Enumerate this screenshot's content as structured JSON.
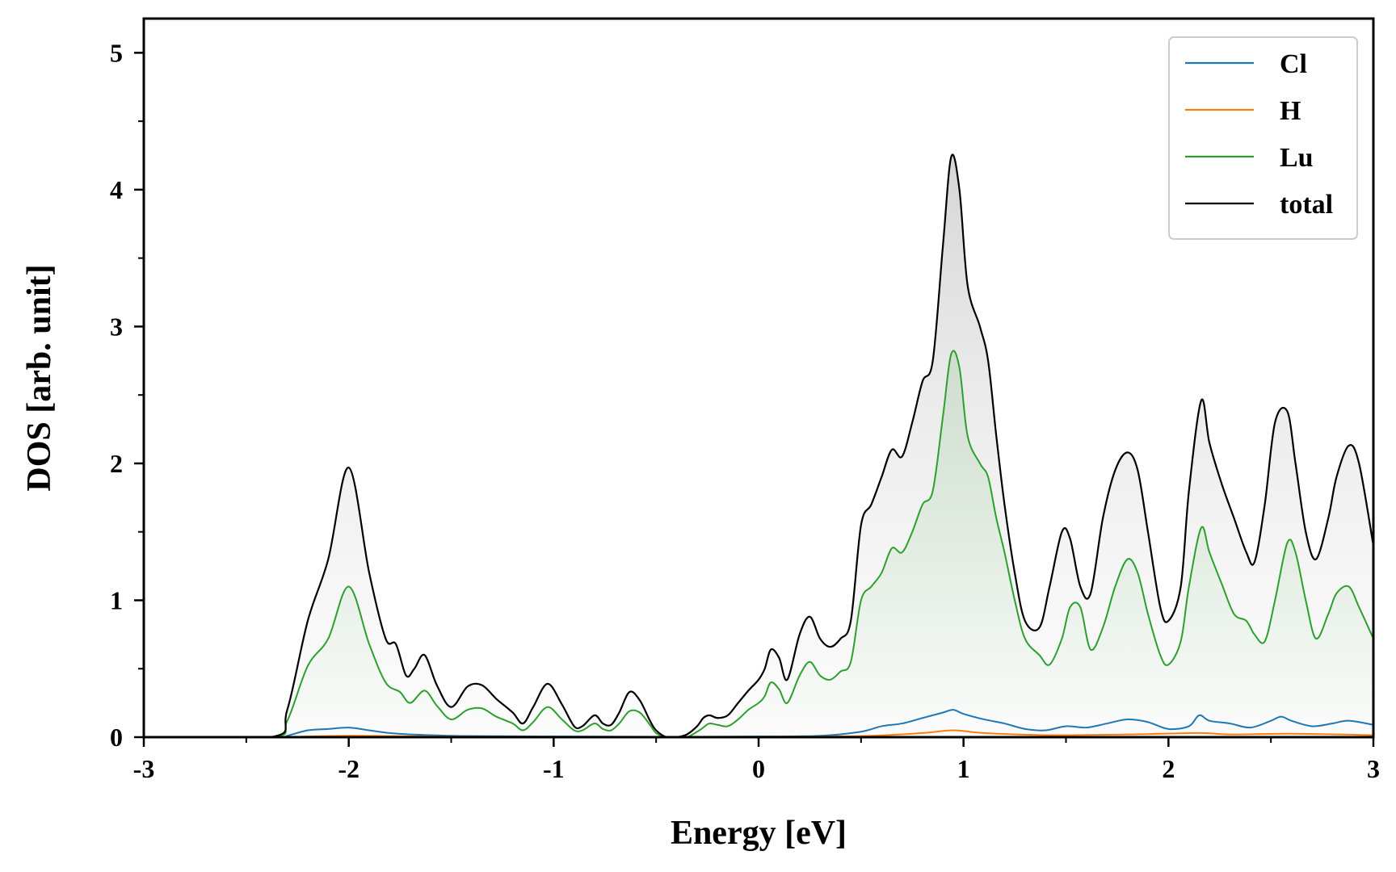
{
  "chart_data": {
    "type": "line",
    "xlabel": "Energy [eV]",
    "ylabel": "DOS [arb. unit]",
    "xlim": [
      -3,
      3
    ],
    "ylim": [
      0,
      5.25
    ],
    "x_ticks": [
      -3,
      -2,
      -1,
      0,
      1,
      2,
      3
    ],
    "x_tick_labels": [
      "-3",
      "-2",
      "-1",
      "0",
      "1",
      "2",
      "3"
    ],
    "y_ticks": [
      0,
      1,
      2,
      3,
      4,
      5
    ],
    "y_tick_labels": [
      "0",
      "1",
      "2",
      "3",
      "4",
      "5"
    ],
    "grid": false,
    "legend_position": "top-right",
    "fill_under": [
      "Lu",
      "total"
    ],
    "series": [
      {
        "name": "Cl",
        "color": "#1f77b4",
        "x": [
          -3.0,
          -2.35,
          -2.3,
          -2.2,
          -2.1,
          -2.0,
          -1.9,
          -1.8,
          -1.7,
          -1.6,
          -1.5,
          -1.4,
          -1.0,
          -0.5,
          0.0,
          0.3,
          0.5,
          0.6,
          0.7,
          0.8,
          0.9,
          0.95,
          1.0,
          1.1,
          1.2,
          1.3,
          1.4,
          1.5,
          1.6,
          1.7,
          1.8,
          1.9,
          2.0,
          2.1,
          2.15,
          2.2,
          2.3,
          2.4,
          2.5,
          2.55,
          2.6,
          2.7,
          2.8,
          2.88,
          3.0
        ],
        "y": [
          0.0,
          0.0,
          0.01,
          0.05,
          0.06,
          0.07,
          0.05,
          0.03,
          0.02,
          0.015,
          0.01,
          0.008,
          0.005,
          0.003,
          0.005,
          0.01,
          0.04,
          0.08,
          0.1,
          0.14,
          0.18,
          0.2,
          0.17,
          0.13,
          0.1,
          0.06,
          0.05,
          0.08,
          0.07,
          0.1,
          0.13,
          0.11,
          0.06,
          0.08,
          0.16,
          0.12,
          0.1,
          0.07,
          0.12,
          0.15,
          0.12,
          0.08,
          0.1,
          0.12,
          0.09
        ]
      },
      {
        "name": "H",
        "color": "#ff7f0e",
        "x": [
          -3.0,
          -2.35,
          -2.2,
          -2.0,
          -1.8,
          -1.6,
          -1.4,
          -1.0,
          -0.5,
          0.0,
          0.5,
          0.8,
          0.95,
          1.1,
          1.4,
          1.8,
          2.15,
          2.3,
          2.6,
          3.0
        ],
        "y": [
          0.0,
          0.0,
          0.005,
          0.01,
          0.008,
          0.005,
          0.004,
          0.003,
          0.002,
          0.003,
          0.008,
          0.03,
          0.05,
          0.03,
          0.015,
          0.02,
          0.03,
          0.02,
          0.025,
          0.015
        ]
      },
      {
        "name": "Lu",
        "color": "#2ca02c",
        "x": [
          -3.0,
          -2.38,
          -2.3,
          -2.2,
          -2.1,
          -2.0,
          -1.9,
          -1.82,
          -1.75,
          -1.7,
          -1.63,
          -1.57,
          -1.5,
          -1.42,
          -1.35,
          -1.28,
          -1.2,
          -1.15,
          -1.1,
          -1.03,
          -0.96,
          -0.9,
          -0.86,
          -0.8,
          -0.76,
          -0.72,
          -0.68,
          -0.63,
          -0.58,
          -0.53,
          -0.5,
          -0.45,
          -0.4,
          -0.35,
          -0.3,
          -0.27,
          -0.24,
          -0.2,
          -0.15,
          -0.1,
          -0.05,
          0.0,
          0.03,
          0.06,
          0.1,
          0.14,
          0.2,
          0.25,
          0.3,
          0.35,
          0.4,
          0.45,
          0.5,
          0.55,
          0.6,
          0.65,
          0.7,
          0.75,
          0.8,
          0.85,
          0.9,
          0.94,
          0.98,
          1.02,
          1.08,
          1.12,
          1.16,
          1.2,
          1.25,
          1.3,
          1.37,
          1.42,
          1.48,
          1.52,
          1.57,
          1.62,
          1.68,
          1.74,
          1.8,
          1.85,
          1.9,
          1.96,
          2.0,
          2.06,
          2.1,
          2.16,
          2.2,
          2.26,
          2.32,
          2.38,
          2.42,
          2.47,
          2.52,
          2.58,
          2.62,
          2.67,
          2.72,
          2.78,
          2.82,
          2.88,
          2.93,
          3.0
        ],
        "y": [
          0.0,
          0.0,
          0.12,
          0.52,
          0.72,
          1.1,
          0.68,
          0.4,
          0.33,
          0.25,
          0.34,
          0.23,
          0.13,
          0.2,
          0.21,
          0.15,
          0.1,
          0.05,
          0.11,
          0.22,
          0.13,
          0.05,
          0.05,
          0.1,
          0.06,
          0.05,
          0.1,
          0.19,
          0.18,
          0.09,
          0.03,
          0.0,
          0.0,
          0.0,
          0.04,
          0.07,
          0.1,
          0.09,
          0.08,
          0.13,
          0.2,
          0.25,
          0.3,
          0.4,
          0.35,
          0.25,
          0.45,
          0.55,
          0.45,
          0.42,
          0.48,
          0.55,
          1.0,
          1.1,
          1.2,
          1.38,
          1.35,
          1.5,
          1.7,
          1.8,
          2.35,
          2.8,
          2.7,
          2.2,
          2.0,
          1.9,
          1.6,
          1.35,
          1.0,
          0.72,
          0.6,
          0.53,
          0.72,
          0.95,
          0.95,
          0.64,
          0.8,
          1.1,
          1.3,
          1.2,
          0.9,
          0.6,
          0.53,
          0.7,
          1.1,
          1.53,
          1.35,
          1.12,
          0.9,
          0.85,
          0.75,
          0.7,
          1.0,
          1.42,
          1.35,
          1.0,
          0.72,
          0.9,
          1.05,
          1.1,
          0.95,
          0.72
        ]
      },
      {
        "name": "total",
        "color": "#000000",
        "x": [
          -3.0,
          -2.38,
          -2.3,
          -2.2,
          -2.1,
          -2.0,
          -1.9,
          -1.82,
          -1.77,
          -1.72,
          -1.68,
          -1.63,
          -1.57,
          -1.5,
          -1.42,
          -1.35,
          -1.28,
          -1.2,
          -1.15,
          -1.1,
          -1.03,
          -0.96,
          -0.9,
          -0.86,
          -0.8,
          -0.76,
          -0.72,
          -0.68,
          -0.63,
          -0.58,
          -0.53,
          -0.5,
          -0.45,
          -0.4,
          -0.35,
          -0.3,
          -0.27,
          -0.24,
          -0.2,
          -0.15,
          -0.1,
          -0.05,
          0.0,
          0.03,
          0.06,
          0.1,
          0.14,
          0.2,
          0.25,
          0.3,
          0.35,
          0.4,
          0.45,
          0.5,
          0.55,
          0.6,
          0.65,
          0.7,
          0.75,
          0.8,
          0.85,
          0.9,
          0.94,
          0.98,
          1.02,
          1.08,
          1.12,
          1.16,
          1.2,
          1.25,
          1.3,
          1.37,
          1.42,
          1.48,
          1.52,
          1.57,
          1.62,
          1.68,
          1.74,
          1.8,
          1.85,
          1.9,
          1.96,
          2.0,
          2.06,
          2.1,
          2.16,
          2.2,
          2.26,
          2.32,
          2.38,
          2.42,
          2.47,
          2.52,
          2.58,
          2.62,
          2.67,
          2.72,
          2.78,
          2.82,
          2.88,
          2.93,
          3.0
        ],
        "y": [
          0.0,
          0.0,
          0.2,
          0.85,
          1.3,
          1.97,
          1.2,
          0.72,
          0.68,
          0.45,
          0.5,
          0.6,
          0.38,
          0.22,
          0.37,
          0.38,
          0.28,
          0.18,
          0.1,
          0.22,
          0.39,
          0.24,
          0.08,
          0.08,
          0.16,
          0.1,
          0.09,
          0.18,
          0.33,
          0.27,
          0.12,
          0.05,
          0.0,
          0.0,
          0.02,
          0.08,
          0.14,
          0.16,
          0.14,
          0.16,
          0.25,
          0.34,
          0.42,
          0.5,
          0.64,
          0.58,
          0.42,
          0.75,
          0.88,
          0.72,
          0.66,
          0.72,
          0.85,
          1.55,
          1.7,
          1.9,
          2.1,
          2.05,
          2.3,
          2.6,
          2.75,
          3.6,
          4.24,
          4.0,
          3.3,
          3.0,
          2.75,
          2.2,
          1.7,
          1.2,
          0.85,
          0.8,
          1.1,
          1.5,
          1.45,
          1.1,
          1.05,
          1.6,
          1.95,
          2.08,
          1.95,
          1.5,
          0.95,
          0.85,
          1.1,
          1.8,
          2.46,
          2.15,
          1.85,
          1.6,
          1.35,
          1.28,
          1.7,
          2.3,
          2.38,
          2.0,
          1.5,
          1.3,
          1.6,
          1.9,
          2.13,
          2.0,
          1.4
        ]
      }
    ]
  }
}
